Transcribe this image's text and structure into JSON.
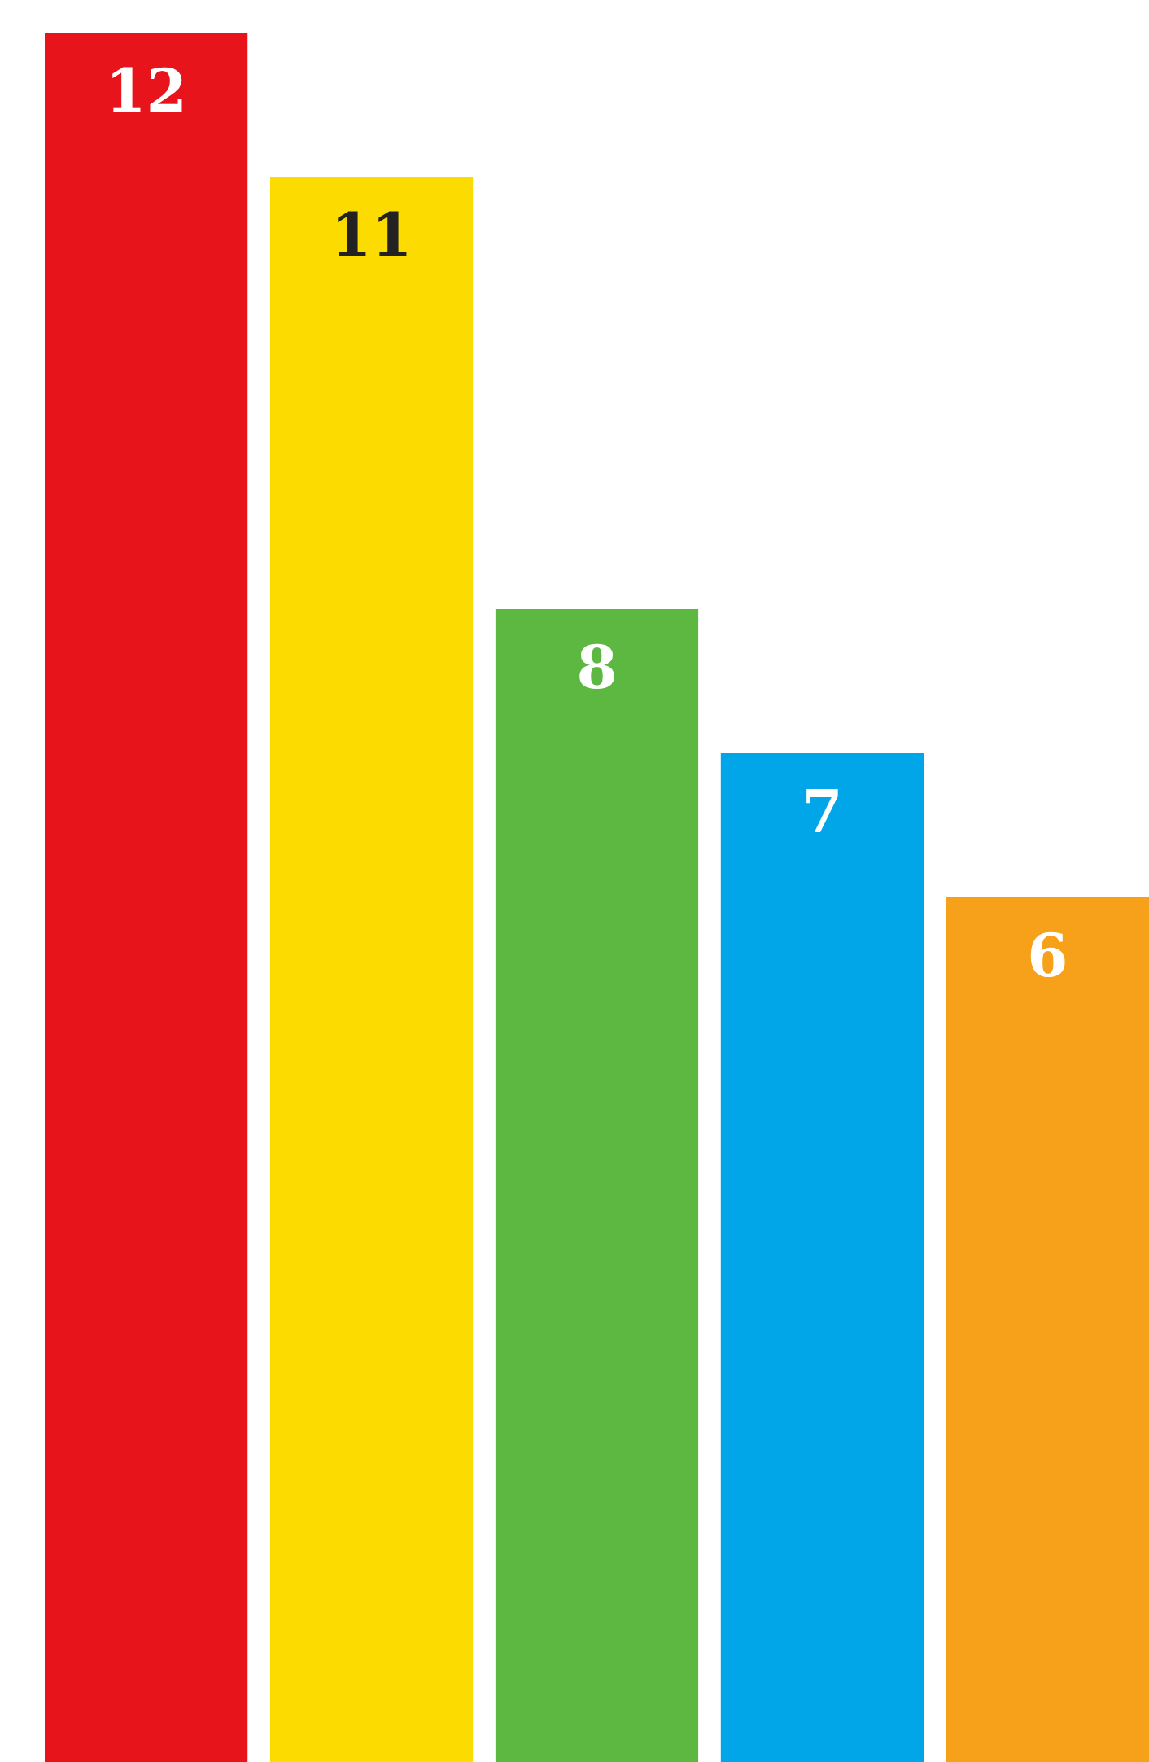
{
  "chart_data": {
    "type": "bar",
    "categories": [
      null,
      null,
      null,
      null,
      null
    ],
    "values": [
      12,
      11,
      8,
      7,
      6
    ],
    "colors": [
      "#e8141c",
      "#fcdc00",
      "#5cb840",
      "#00a6e8",
      "#f7a01a"
    ],
    "data_labels": true
  }
}
